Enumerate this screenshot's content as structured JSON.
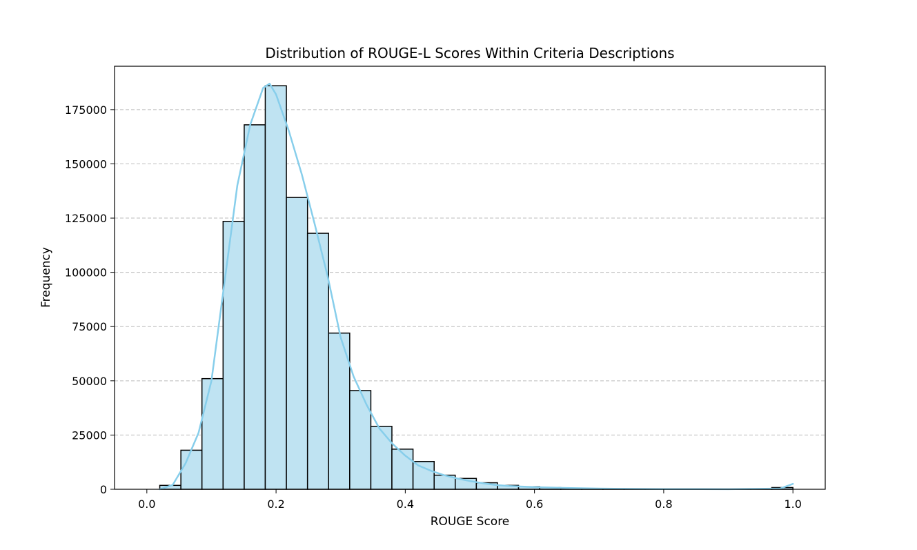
{
  "chart_data": {
    "type": "bar",
    "title": "Distribution of ROUGE-L Scores Within Criteria Descriptions",
    "xlabel": "ROUGE Score",
    "ylabel": "Frequency",
    "xlim": [
      -0.05,
      1.05
    ],
    "ylim": [
      0,
      195000
    ],
    "x_ticks": [
      0.0,
      0.2,
      0.4,
      0.6,
      0.8,
      1.0
    ],
    "x_tick_labels": [
      "0.0",
      "0.2",
      "0.4",
      "0.6",
      "0.8",
      "1.0"
    ],
    "y_ticks": [
      0,
      25000,
      50000,
      75000,
      100000,
      125000,
      150000,
      175000
    ],
    "y_tick_labels": [
      "0",
      "25000",
      "50000",
      "75000",
      "100000",
      "125000",
      "150000",
      "175000"
    ],
    "grid": "horizontal dashed",
    "bin_edges": [
      0.02,
      0.0527,
      0.0853,
      0.118,
      0.1507,
      0.1833,
      0.216,
      0.2487,
      0.2813,
      0.314,
      0.3467,
      0.3793,
      0.412,
      0.4447,
      0.4773,
      0.51,
      0.5427,
      0.5753,
      0.608,
      0.6407,
      0.6733,
      0.706,
      0.7387,
      0.7713,
      0.804,
      0.8367,
      0.8693,
      0.902,
      0.9347,
      0.9673,
      1.0
    ],
    "values": [
      1800,
      18000,
      51000,
      123500,
      168000,
      186000,
      134500,
      118000,
      72000,
      45500,
      29000,
      18500,
      12800,
      6500,
      5000,
      3000,
      1800,
      1200,
      800,
      500,
      300,
      200,
      150,
      100,
      80,
      60,
      50,
      40,
      30,
      800
    ],
    "kde": {
      "x": [
        0.02,
        0.04,
        0.06,
        0.08,
        0.1,
        0.12,
        0.14,
        0.16,
        0.18,
        0.19,
        0.2,
        0.22,
        0.24,
        0.26,
        0.28,
        0.3,
        0.32,
        0.34,
        0.36,
        0.38,
        0.4,
        0.42,
        0.44,
        0.46,
        0.48,
        0.5,
        0.52,
        0.54,
        0.56,
        0.6,
        0.65,
        0.7,
        0.8,
        0.9,
        0.98,
        1.0
      ],
      "y": [
        0,
        2000,
        12000,
        26000,
        50000,
        95000,
        140000,
        168000,
        185000,
        187000,
        182000,
        165000,
        145000,
        122000,
        98000,
        70000,
        52000,
        39000,
        28000,
        21000,
        15500,
        11000,
        8500,
        6500,
        5000,
        3800,
        2800,
        2000,
        1500,
        1000,
        600,
        300,
        100,
        50,
        300,
        2500
      ]
    },
    "colors": {
      "bar_fill": "#bfe3f2",
      "bar_edge": "#000000",
      "kde_line": "#87ceeb",
      "grid": "#bbbbbb"
    }
  }
}
